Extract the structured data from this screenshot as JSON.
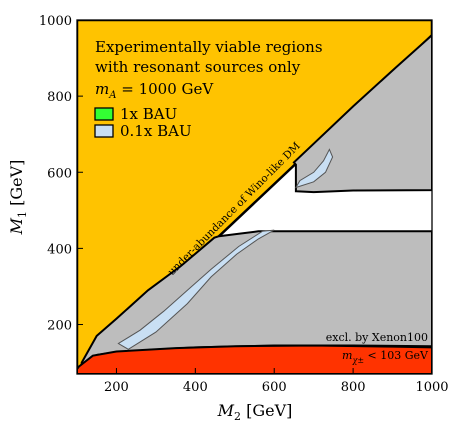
{
  "chart_data": {
    "type": "area",
    "title": "",
    "xlabel": "M_2 [GeV]",
    "ylabel": "M_1 [GeV]",
    "xlim": [
      100,
      1000
    ],
    "ylim": [
      70,
      1000
    ],
    "x_ticks": [
      200,
      400,
      600,
      800,
      1000
    ],
    "y_ticks": [
      200,
      400,
      600,
      800,
      1000
    ],
    "text_lines": [
      "Experimentally viable regions",
      "with resonant sources only",
      "m_A = 1000 GeV"
    ],
    "legend": [
      {
        "label": "1x BAU",
        "color": "#33ff33"
      },
      {
        "label": "0.1x BAU",
        "color": "#c9dff3"
      }
    ],
    "annotations": {
      "diagonal": "under-abundance of Wino-like DM",
      "xenon": "excl. by Xenon100",
      "chargino": "m_χ± < 103 GeV"
    },
    "colors": {
      "underabundance": "#ffc300",
      "excluded_chargino": "#ff3300",
      "grey_region": "#bdbdbd",
      "viable_white": "#ffffff",
      "bau_01x": "#c9dff3",
      "bau_1x": "#33ff33"
    },
    "regions": {
      "underabundance": [
        [
          100,
          70
        ],
        [
          100,
          1000
        ],
        [
          1000,
          1000
        ],
        [
          1000,
          960
        ],
        [
          100,
          80
        ]
      ],
      "grey_lower": [
        [
          112,
          90
        ],
        [
          150,
          120
        ],
        [
          200,
          127
        ],
        [
          280,
          133
        ],
        [
          400,
          140
        ],
        [
          600,
          145
        ],
        [
          800,
          145
        ],
        [
          1000,
          143
        ],
        [
          1000,
          445
        ],
        [
          560,
          445
        ],
        [
          500,
          437
        ],
        [
          460,
          432
        ],
        [
          448,
          428
        ],
        [
          365,
          355
        ],
        [
          280,
          290
        ],
        [
          200,
          215
        ],
        [
          150,
          170
        ],
        [
          112,
          100
        ]
      ],
      "grey_upper": [
        [
          655,
          550
        ],
        [
          700,
          548
        ],
        [
          800,
          552
        ],
        [
          1000,
          553
        ],
        [
          1000,
          960
        ],
        [
          908,
          875
        ],
        [
          800,
          773
        ],
        [
          700,
          675
        ],
        [
          650,
          626
        ],
        [
          655,
          620
        ]
      ],
      "excluded_chargino": [
        [
          100,
          70
        ],
        [
          1000,
          70
        ],
        [
          1000,
          140
        ],
        [
          900,
          142
        ],
        [
          700,
          145
        ],
        [
          500,
          143
        ],
        [
          350,
          138
        ],
        [
          200,
          129
        ],
        [
          140,
          118
        ],
        [
          105,
          90
        ],
        [
          100,
          83
        ]
      ],
      "bau_01x_bands": [
        [
          [
            230,
            135
          ],
          [
            300,
            180
          ],
          [
            380,
            255
          ],
          [
            440,
            325
          ],
          [
            505,
            385
          ],
          [
            560,
            425
          ],
          [
            600,
            448
          ],
          [
            570,
            445
          ],
          [
            510,
            405
          ],
          [
            440,
            345
          ],
          [
            380,
            290
          ],
          [
            320,
            235
          ],
          [
            260,
            185
          ],
          [
            205,
            150
          ]
        ],
        [
          [
            655,
            560
          ],
          [
            700,
            575
          ],
          [
            730,
            600
          ],
          [
            748,
            640
          ],
          [
            740,
            660
          ],
          [
            725,
            630
          ],
          [
            700,
            600
          ],
          [
            665,
            578
          ]
        ]
      ]
    }
  }
}
